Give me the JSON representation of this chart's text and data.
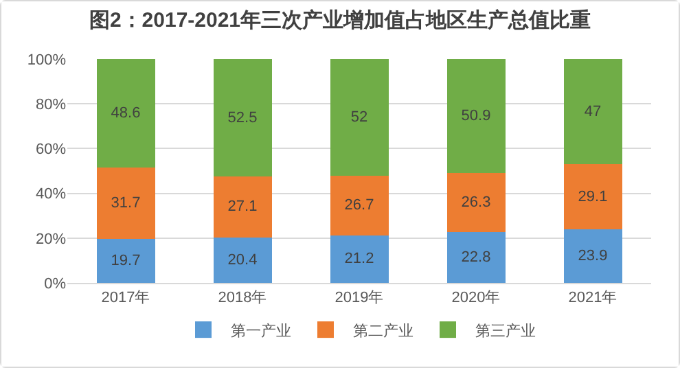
{
  "chart_data": {
    "type": "bar",
    "title": "图2：2017-2021年三次产业增加值占地区生产总值比重",
    "stacked": true,
    "categories": [
      "2017年",
      "2018年",
      "2019年",
      "2020年",
      "2021年"
    ],
    "series": [
      {
        "name": "第一产业",
        "color": "#5b9bd5",
        "values": [
          19.7,
          20.4,
          21.2,
          22.8,
          23.9
        ]
      },
      {
        "name": "第二产业",
        "color": "#ed7d31",
        "values": [
          31.7,
          27.1,
          26.7,
          26.3,
          29.1
        ]
      },
      {
        "name": "第三产业",
        "color": "#70ad47",
        "values": [
          48.6,
          52.5,
          52,
          50.9,
          47
        ]
      }
    ],
    "ylim": [
      0,
      100
    ],
    "yticks": [
      {
        "value": 0,
        "label": "0%"
      },
      {
        "value": 20,
        "label": "20%"
      },
      {
        "value": 40,
        "label": "40%"
      },
      {
        "value": 60,
        "label": "60%"
      },
      {
        "value": 80,
        "label": "80%"
      },
      {
        "value": 100,
        "label": "100%"
      }
    ],
    "grid": "y",
    "legend": "bottom",
    "data_labels": true
  }
}
